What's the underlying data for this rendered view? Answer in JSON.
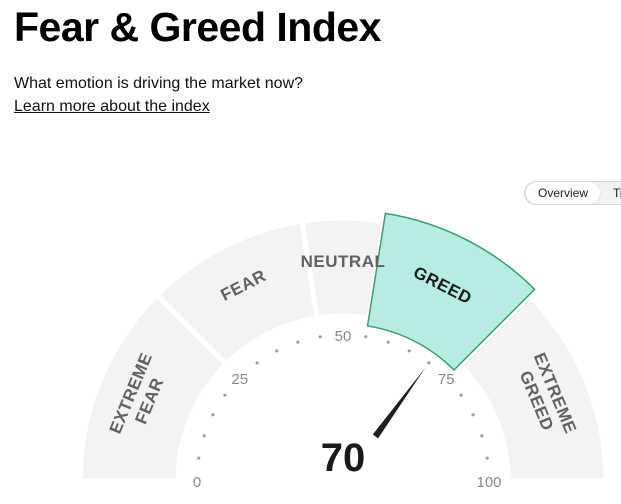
{
  "header": {
    "title": "Fear & Greed Index",
    "subtitle": "What emotion is driving the market now?",
    "learn_more": "Learn more about the index"
  },
  "tabs": [
    {
      "label": "Overview",
      "active": true
    },
    {
      "label": "Ti",
      "active": false
    }
  ],
  "gauge": {
    "value": "70",
    "value_numeric": 70,
    "range": [
      0,
      100
    ],
    "ticks": [
      "0",
      "25",
      "50",
      "75",
      "100"
    ],
    "segments": [
      {
        "lines": [
          "EXTREME",
          "FEAR"
        ],
        "from": 0,
        "to": 25,
        "active": false
      },
      {
        "lines": [
          "FEAR"
        ],
        "from": 25,
        "to": 45,
        "active": false
      },
      {
        "lines": [
          "NEUTRAL"
        ],
        "from": 45,
        "to": 55,
        "active": false
      },
      {
        "lines": [
          "GREED"
        ],
        "from": 55,
        "to": 75,
        "active": true
      },
      {
        "lines": [
          "EXTREME",
          "GREED"
        ],
        "from": 75,
        "to": 100,
        "active": false
      }
    ],
    "colors": {
      "segment": "#f3f3f3",
      "active_fill": "#b6ece2",
      "active_stroke": "#3d9e6e",
      "label": "#616161",
      "active_label": "#1c1c1c",
      "needle": "#1f1f1f",
      "tick_text": "#8a8a8a",
      "dots": "#9e9e9e"
    }
  }
}
